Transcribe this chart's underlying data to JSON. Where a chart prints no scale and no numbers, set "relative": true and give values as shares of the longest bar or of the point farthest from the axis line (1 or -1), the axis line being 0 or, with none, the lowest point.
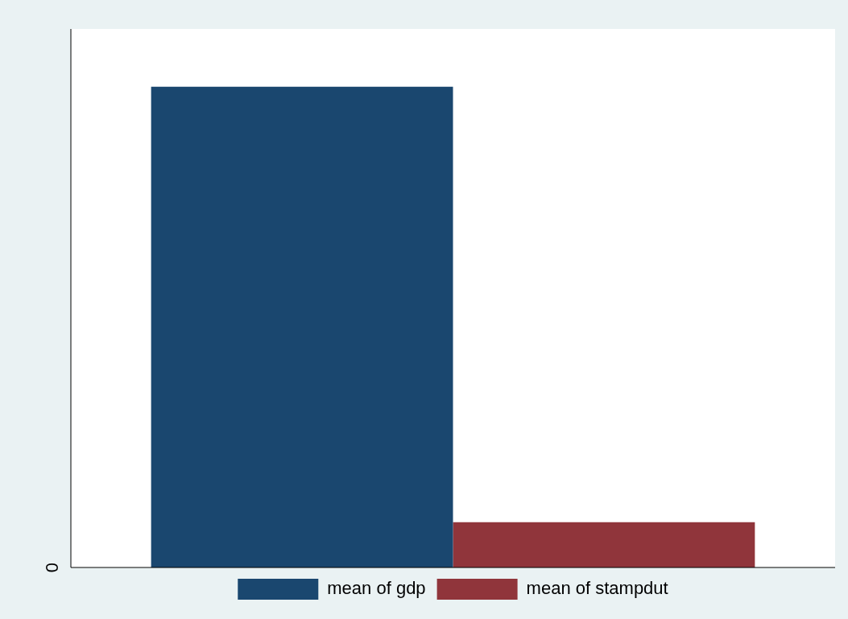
{
  "chart_data": {
    "type": "bar",
    "relative": true,
    "categories": [
      null
    ],
    "series": [
      {
        "name": "mean of gdp",
        "color": "#1a476f",
        "values": [
          1
        ]
      },
      {
        "name": "mean of stampdut",
        "color": "#90353b",
        "values": [
          0.094
        ]
      }
    ],
    "annotations": [
      "0"
    ],
    "legend": "bottom"
  }
}
